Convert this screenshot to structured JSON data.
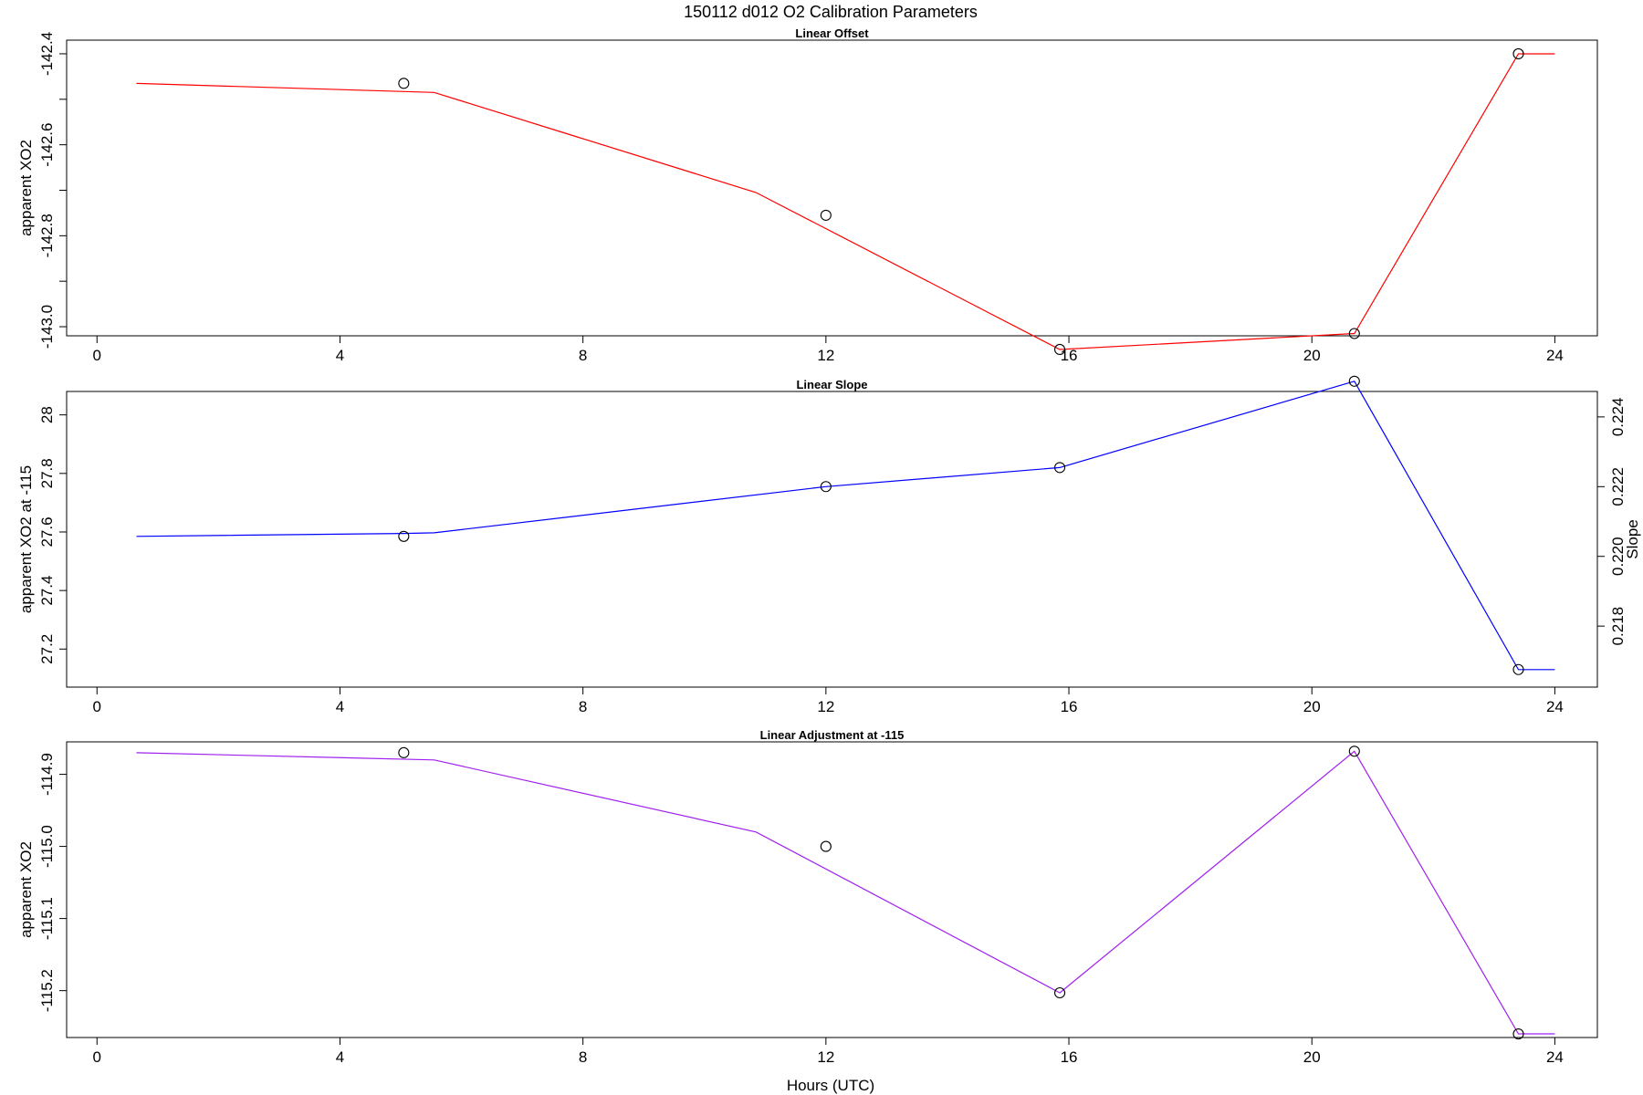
{
  "title": "150112   d012   O2 Calibration Parameters",
  "xlabel": "Hours (UTC)",
  "chart_data": [
    {
      "type": "line",
      "title": "Linear Offset",
      "ylabel": "apparent XO2",
      "xlim": [
        -0.5,
        24.7
      ],
      "ylim": [
        -143.02,
        -142.37
      ],
      "x_ticks": [
        0,
        4,
        8,
        12,
        16,
        20,
        24
      ],
      "y_ticks": [
        -143.0,
        -142.8,
        -142.6,
        -142.4
      ],
      "y_minor_ticks": [
        -142.9,
        -142.7,
        -142.5
      ],
      "line_color": "#ff0000",
      "series": [
        {
          "kind": "line",
          "x": [
            0.65,
            5.55,
            10.85,
            15.85,
            20.7,
            23.4,
            24.0
          ],
          "y": [
            -142.465,
            -142.485,
            -142.705,
            -143.05,
            -143.015,
            -142.4,
            -142.4
          ]
        },
        {
          "kind": "points",
          "x": [
            5.05,
            12.0,
            15.85,
            20.7,
            23.4
          ],
          "y": [
            -142.465,
            -142.755,
            -143.05,
            -143.015,
            -142.4
          ]
        }
      ]
    },
    {
      "type": "line",
      "title": "Linear Slope",
      "ylabel": "apparent XO2 at -115",
      "y2label": "Slope",
      "xlim": [
        -0.5,
        24.7
      ],
      "ylim": [
        27.07,
        28.08
      ],
      "y2lim": [
        0.21625,
        0.22473
      ],
      "x_ticks": [
        0,
        4,
        8,
        12,
        16,
        20,
        24
      ],
      "y_ticks": [
        27.2,
        27.4,
        27.6,
        27.8,
        28.0
      ],
      "y2_ticks": [
        0.218,
        0.22,
        0.222,
        0.224
      ],
      "line_color": "#0000ff",
      "series": [
        {
          "kind": "line",
          "x": [
            0.65,
            5.05,
            5.55,
            12.0,
            15.85,
            20.7,
            23.4,
            24.0
          ],
          "y": [
            27.585,
            27.595,
            27.597,
            27.755,
            27.82,
            28.115,
            27.13,
            27.13
          ]
        },
        {
          "kind": "points",
          "x": [
            5.05,
            12.0,
            15.85,
            20.7,
            23.4
          ],
          "y": [
            27.585,
            27.755,
            27.82,
            28.115,
            27.13
          ]
        }
      ]
    },
    {
      "type": "line",
      "title": "Linear Adjustment at -115",
      "ylabel": "apparent XO2",
      "xlim": [
        -0.5,
        24.7
      ],
      "ylim": [
        -115.265,
        -114.855
      ],
      "x_ticks": [
        0,
        4,
        8,
        12,
        16,
        20,
        24
      ],
      "y_ticks": [
        -115.2,
        -115.1,
        -115.0,
        -114.9
      ],
      "line_color": "#a020f0",
      "series": [
        {
          "kind": "line",
          "x": [
            0.65,
            5.55,
            10.85,
            15.85,
            20.7,
            23.4,
            24.0
          ],
          "y": [
            -114.87,
            -114.88,
            -114.98,
            -115.203,
            -114.868,
            -115.26,
            -115.26
          ]
        },
        {
          "kind": "points",
          "x": [
            5.05,
            12.0,
            15.85,
            20.7,
            23.4
          ],
          "y": [
            -114.87,
            -115.0,
            -115.203,
            -114.868,
            -115.26
          ]
        }
      ]
    }
  ]
}
